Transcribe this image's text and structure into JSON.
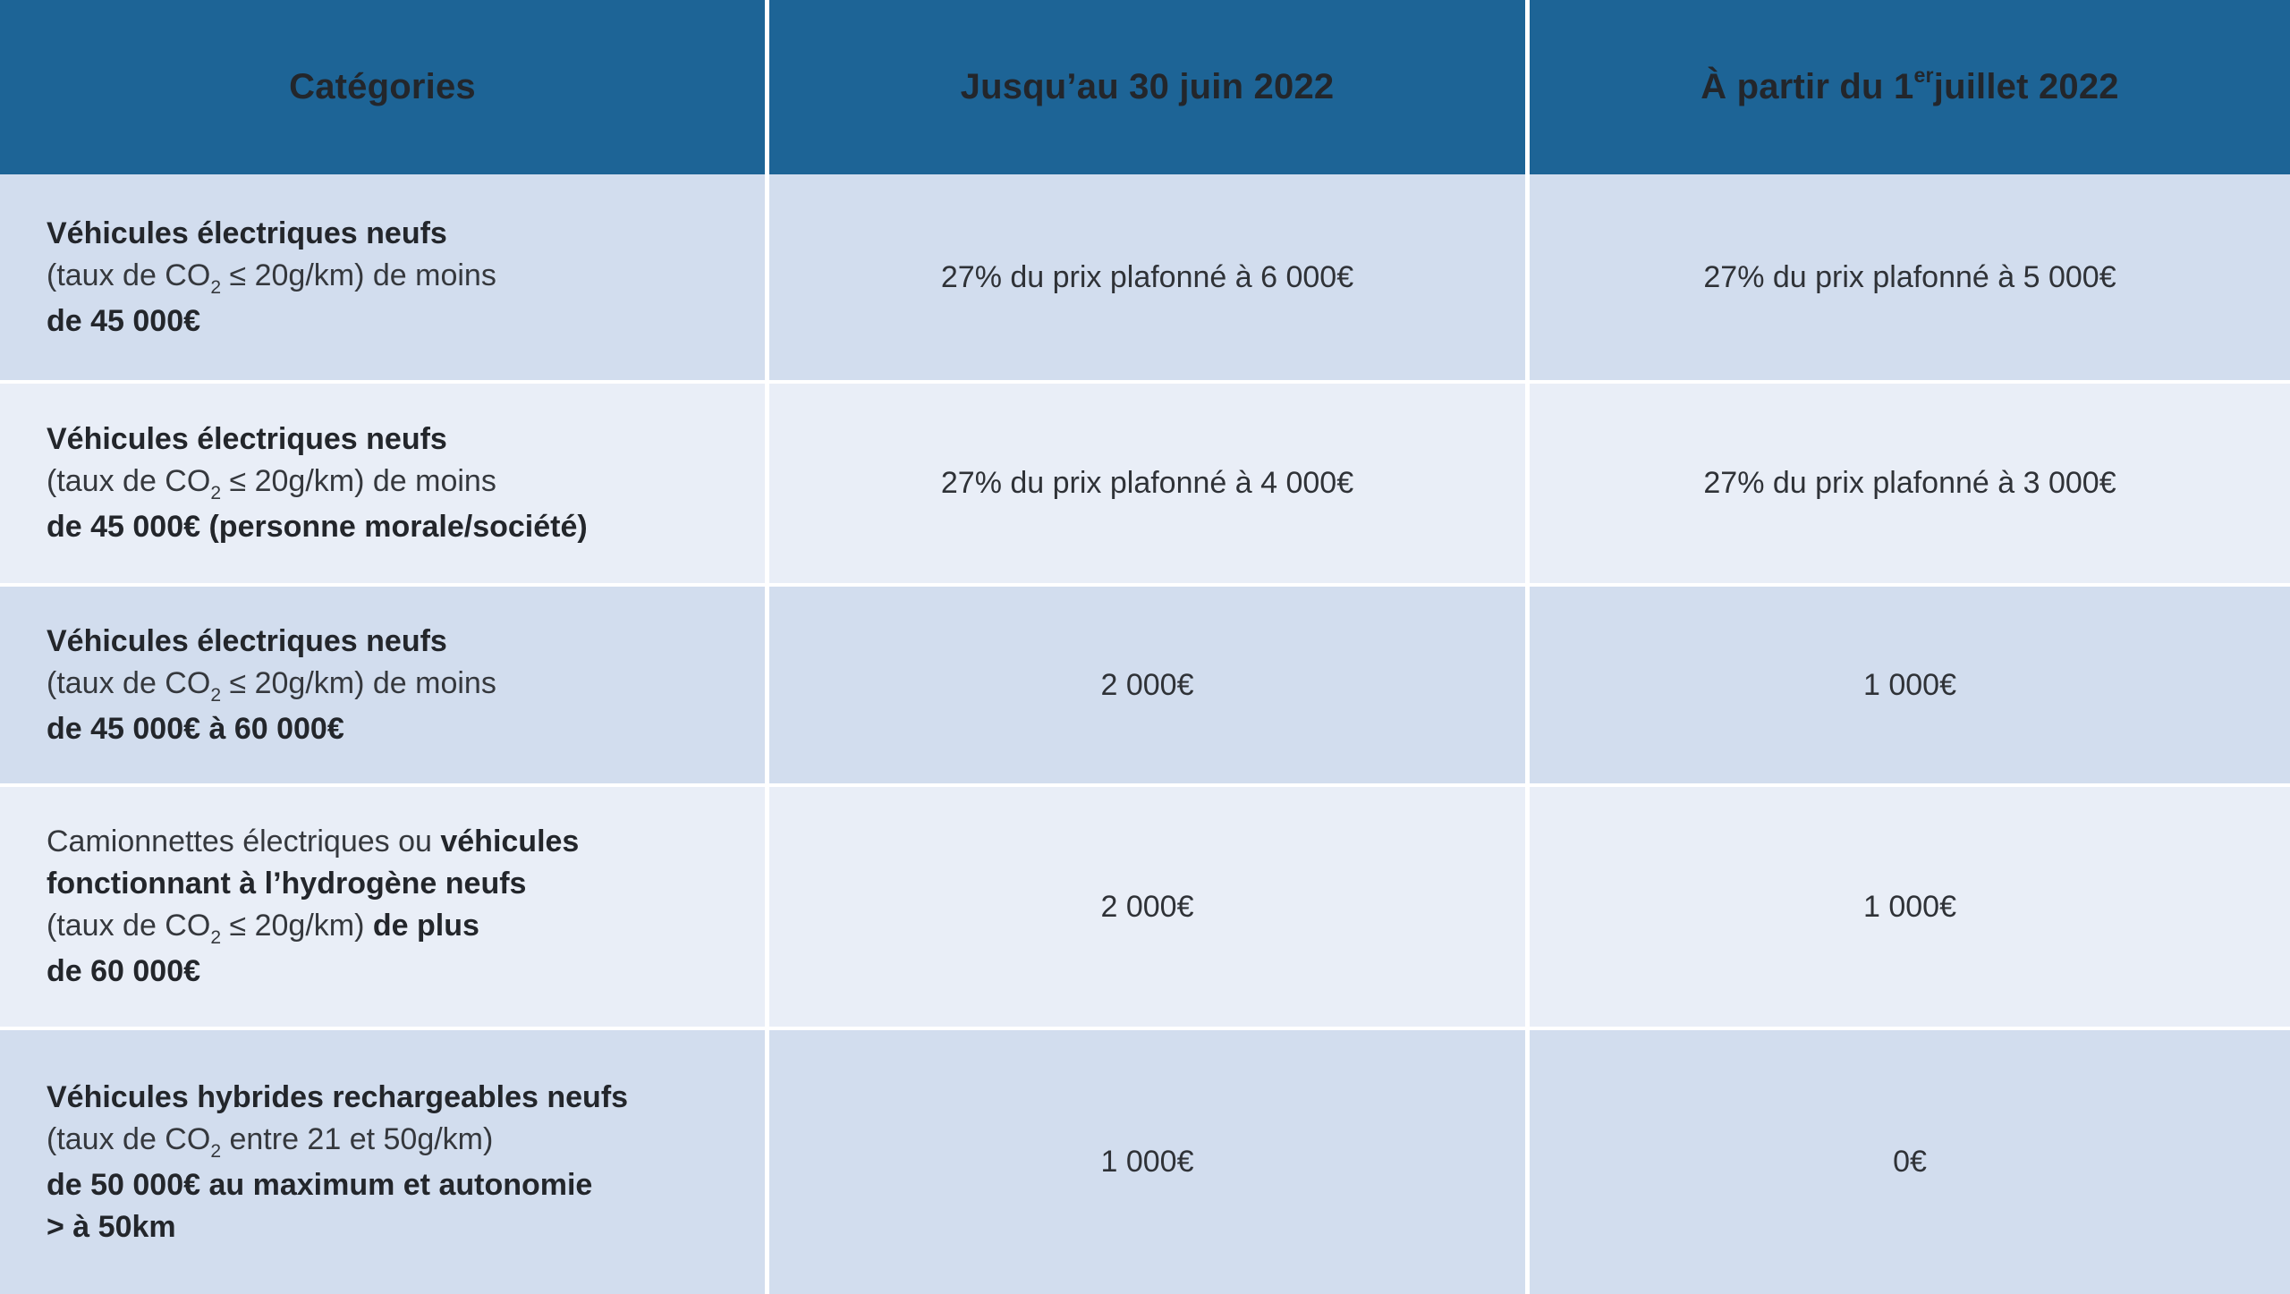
{
  "colors": {
    "header_bg": "#1d6496",
    "header_text": "#ffffff",
    "row_shade_dark": "#d2ddee",
    "row_shade_light": "#e9eef7",
    "divider": "#ffffff",
    "body_text": "#35383d"
  },
  "header": {
    "categories": {
      "runs": [
        {
          "t": "Catégories",
          "b": true
        }
      ]
    },
    "until_june": {
      "runs": [
        {
          "t": "Jusqu’au 30 juin 2022",
          "b": true
        }
      ]
    },
    "from_july": {
      "runs": [
        {
          "t": "À partir du 1",
          "b": true
        },
        {
          "t": "er",
          "b": true,
          "sup": true
        },
        {
          "t": " juillet 2022",
          "b": true
        }
      ]
    }
  },
  "rows": [
    {
      "category_lines": [
        [
          {
            "t": "Véhicules électriques neufs",
            "b": true
          }
        ],
        [
          {
            "t": "(taux de CO"
          },
          {
            "t": "2",
            "sub": true
          },
          {
            "t": " ≤ 20g/km) de moins"
          }
        ],
        [
          {
            "t": "de 45 000€",
            "b": true
          }
        ]
      ],
      "until_june": "27% du prix plafonné à 6 000€",
      "from_july": "27% du prix plafonné à 5 000€"
    },
    {
      "category_lines": [
        [
          {
            "t": "Véhicules électriques neufs",
            "b": true
          }
        ],
        [
          {
            "t": "(taux de CO"
          },
          {
            "t": "2",
            "sub": true
          },
          {
            "t": " ≤ 20g/km) de moins"
          }
        ],
        [
          {
            "t": "de 45 000€ (personne morale/société)",
            "b": true
          }
        ]
      ],
      "until_june": "27% du prix plafonné à 4 000€",
      "from_july": "27% du prix plafonné à 3 000€"
    },
    {
      "category_lines": [
        [
          {
            "t": "Véhicules électriques neufs",
            "b": true
          }
        ],
        [
          {
            "t": "(taux de CO"
          },
          {
            "t": "2",
            "sub": true
          },
          {
            "t": " ≤ 20g/km) de moins"
          }
        ],
        [
          {
            "t": "de 45 000€ à 60 000€",
            "b": true
          }
        ]
      ],
      "until_june": "2 000€",
      "from_july": "1 000€"
    },
    {
      "category_lines": [
        [
          {
            "t": "Camionnettes électriques ou "
          },
          {
            "t": "véhicules",
            "b": true
          }
        ],
        [
          {
            "t": "fonctionnant à l’hydrogène neufs",
            "b": true
          }
        ],
        [
          {
            "t": "(taux de CO"
          },
          {
            "t": "2",
            "sub": true
          },
          {
            "t": " ≤ 20g/km) "
          },
          {
            "t": "de plus",
            "b": true
          }
        ],
        [
          {
            "t": "de 60 000€",
            "b": true
          }
        ]
      ],
      "until_june": "2 000€",
      "from_july": "1 000€"
    },
    {
      "category_lines": [
        [
          {
            "t": "Véhicules hybrides rechargeables neufs",
            "b": true
          }
        ],
        [
          {
            "t": "(taux de CO"
          },
          {
            "t": "2",
            "sub": true
          },
          {
            "t": " entre 21 et 50g/km)"
          }
        ],
        [
          {
            "t": "de 50 000€ au maximum et autonomie",
            "b": true
          }
        ],
        [
          {
            "t": "> à 50km",
            "b": true
          }
        ]
      ],
      "until_june": "1 000€",
      "from_july": "0€"
    }
  ],
  "chart_data": {
    "type": "table",
    "columns": [
      "Catégories",
      "Jusqu’au 30 juin 2022",
      "À partir du 1er juillet 2022"
    ],
    "rows": [
      [
        "Véhicules électriques neufs (taux de CO2 ≤ 20g/km) de moins de 45 000€",
        "27% du prix plafonné à 6 000€",
        "27% du prix plafonné à 5 000€"
      ],
      [
        "Véhicules électriques neufs (taux de CO2 ≤ 20g/km) de moins de 45 000€ (personne morale/société)",
        "27% du prix plafonné à 4 000€",
        "27% du prix plafonné à 3 000€"
      ],
      [
        "Véhicules électriques neufs (taux de CO2 ≤ 20g/km) de moins de 45 000€ à 60 000€",
        "2 000€",
        "1 000€"
      ],
      [
        "Camionnettes électriques ou véhicules fonctionnant à l’hydrogène neufs (taux de CO2 ≤ 20g/km) de plus de 60 000€",
        "2 000€",
        "1 000€"
      ],
      [
        "Véhicules hybrides rechargeables neufs (taux de CO2 entre 21 et 50g/km) de 50 000€ au maximum et autonomie > à 50km",
        "1 000€",
        "0€"
      ]
    ],
    "layout": {
      "header_row": true,
      "alternating_row_shading": true,
      "grid": "white dividers between columns and rows"
    }
  }
}
